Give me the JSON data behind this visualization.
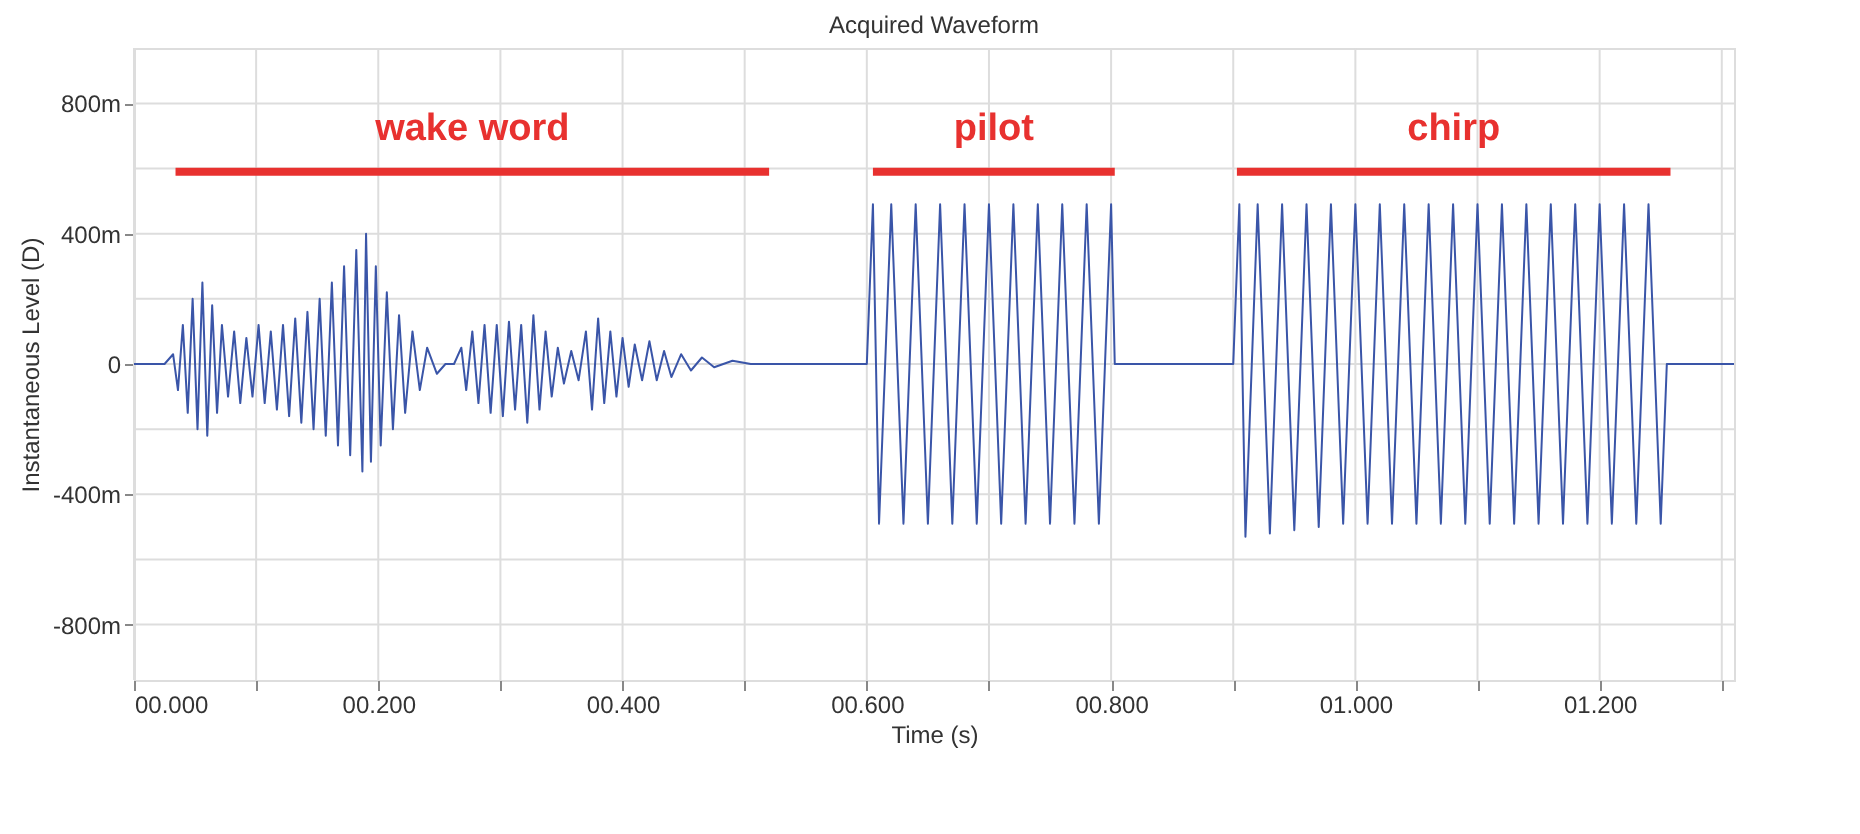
{
  "chart_data": {
    "type": "line",
    "title": "Acquired Waveform",
    "xlabel": "Time (s)",
    "ylabel": "Instantaneous Level (D)",
    "xlim": [
      0,
      1.31
    ],
    "ylim": [
      -970,
      970
    ],
    "xticks": [
      {
        "value": 0,
        "label": "00.000"
      },
      {
        "value": 0.1,
        "label": null
      },
      {
        "value": 0.2,
        "label": "00.200"
      },
      {
        "value": 0.3,
        "label": null
      },
      {
        "value": 0.4,
        "label": "00.400"
      },
      {
        "value": 0.5,
        "label": null
      },
      {
        "value": 0.6,
        "label": "00.600"
      },
      {
        "value": 0.7,
        "label": null
      },
      {
        "value": 0.8,
        "label": "00.800"
      },
      {
        "value": 0.9,
        "label": null
      },
      {
        "value": 1.0,
        "label": "01.000"
      },
      {
        "value": 1.1,
        "label": null
      },
      {
        "value": 1.2,
        "label": "01.200"
      },
      {
        "value": 1.3,
        "label": null
      }
    ],
    "yticks": [
      {
        "value": -800,
        "label": "-800m"
      },
      {
        "value": -600,
        "label": null
      },
      {
        "value": -400,
        "label": "-400m"
      },
      {
        "value": -200,
        "label": null
      },
      0,
      {
        "value": 200,
        "label": null
      },
      {
        "value": 400,
        "label": "400m"
      },
      {
        "value": 600,
        "label": null
      },
      {
        "value": 800,
        "label": "800m"
      }
    ],
    "grid": true,
    "marker": "none",
    "line_style": "solid",
    "series": [
      {
        "color": "#3a55a8",
        "x": [
          0,
          0.025,
          0.032,
          0.036,
          0.04,
          0.044,
          0.048,
          0.052,
          0.056,
          0.06,
          0.064,
          0.068,
          0.072,
          0.077,
          0.082,
          0.087,
          0.092,
          0.097,
          0.102,
          0.107,
          0.112,
          0.117,
          0.122,
          0.127,
          0.132,
          0.137,
          0.142,
          0.147,
          0.152,
          0.157,
          0.162,
          0.167,
          0.172,
          0.177,
          0.182,
          0.187,
          0.19,
          0.194,
          0.198,
          0.202,
          0.207,
          0.212,
          0.217,
          0.222,
          0.228,
          0.234,
          0.24,
          0.248,
          0.255,
          0.262,
          0.268,
          0.272,
          0.277,
          0.282,
          0.287,
          0.292,
          0.297,
          0.302,
          0.307,
          0.312,
          0.317,
          0.322,
          0.327,
          0.332,
          0.337,
          0.342,
          0.347,
          0.352,
          0.358,
          0.364,
          0.37,
          0.375,
          0.38,
          0.385,
          0.39,
          0.395,
          0.4,
          0.405,
          0.41,
          0.416,
          0.422,
          0.428,
          0.434,
          0.44,
          0.448,
          0.456,
          0.465,
          0.475,
          0.49,
          0.505,
          0.6,
          0.605,
          0.61,
          0.62,
          0.63,
          0.64,
          0.65,
          0.66,
          0.67,
          0.68,
          0.69,
          0.7,
          0.71,
          0.72,
          0.73,
          0.74,
          0.75,
          0.76,
          0.77,
          0.78,
          0.79,
          0.8,
          0.803,
          0.9,
          0.905,
          0.91,
          0.92,
          0.93,
          0.94,
          0.95,
          0.96,
          0.97,
          0.98,
          0.99,
          1.0,
          1.01,
          1.02,
          1.03,
          1.04,
          1.05,
          1.06,
          1.07,
          1.08,
          1.09,
          1.1,
          1.11,
          1.12,
          1.13,
          1.14,
          1.15,
          1.16,
          1.17,
          1.18,
          1.19,
          1.2,
          1.21,
          1.22,
          1.23,
          1.24,
          1.25,
          1.255,
          1.31
        ],
        "values": [
          0,
          0,
          30,
          -80,
          120,
          -150,
          200,
          -200,
          250,
          -220,
          180,
          -150,
          120,
          -100,
          100,
          -120,
          80,
          -100,
          120,
          -120,
          100,
          -140,
          120,
          -160,
          140,
          -180,
          160,
          -200,
          200,
          -220,
          250,
          -250,
          300,
          -280,
          350,
          -330,
          400,
          -300,
          300,
          -250,
          220,
          -200,
          150,
          -150,
          100,
          -80,
          50,
          -30,
          0,
          0,
          50,
          -80,
          100,
          -120,
          120,
          -150,
          120,
          -160,
          130,
          -140,
          120,
          -180,
          150,
          -140,
          100,
          -100,
          50,
          -60,
          40,
          -50,
          100,
          -140,
          140,
          -120,
          100,
          -100,
          80,
          -70,
          60,
          -50,
          70,
          -50,
          40,
          -40,
          30,
          -20,
          20,
          -10,
          10,
          0,
          0,
          490,
          -490,
          490,
          -490,
          490,
          -490,
          490,
          -490,
          490,
          -490,
          490,
          -490,
          490,
          -490,
          490,
          -490,
          490,
          -490,
          490,
          -490,
          490,
          0,
          0,
          490,
          -530,
          490,
          -520,
          490,
          -510,
          490,
          -500,
          490,
          -490,
          490,
          -490,
          490,
          -490,
          490,
          -490,
          490,
          -490,
          490,
          -490,
          490,
          -490,
          490,
          -490,
          490,
          -490,
          490,
          -490,
          490,
          -490,
          490,
          -490,
          490,
          -490,
          490,
          -490,
          0,
          0
        ]
      },
      {
        "name": "wake word",
        "color": "#e8312f",
        "x": [
          0.034,
          0.52
        ],
        "values": [
          590,
          590
        ]
      },
      {
        "name": "pilot",
        "color": "#e8312f",
        "x": [
          0.605,
          0.803
        ],
        "values": [
          590,
          590
        ]
      },
      {
        "name": "chirp",
        "color": "#e8312f",
        "x": [
          0.903,
          1.258
        ],
        "values": [
          590,
          590
        ]
      }
    ]
  }
}
